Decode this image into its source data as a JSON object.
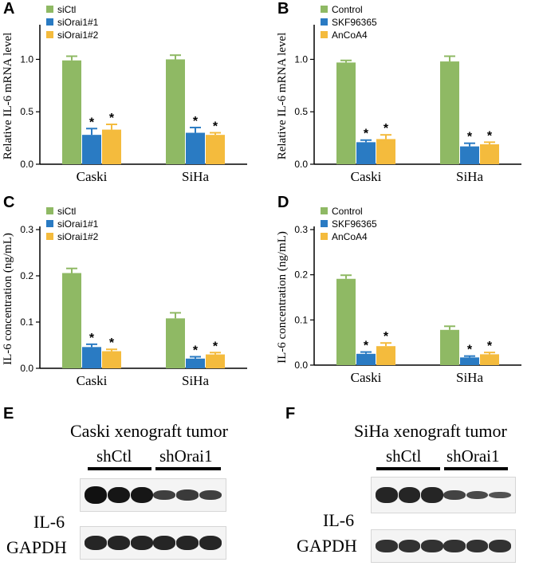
{
  "colors": {
    "green": "#8fb964",
    "blue": "#2a7bc3",
    "yellow": "#f4bb3d"
  },
  "panels": [
    "A",
    "B",
    "C",
    "D",
    "E",
    "F"
  ],
  "chart_data": [
    {
      "id": "A",
      "type": "bar",
      "ylabel": "Relative IL-6 mRNA level",
      "categories": [
        "Caski",
        "SiHa"
      ],
      "ylim": [
        0,
        1.3
      ],
      "yticks": [
        "0.0",
        "0.5",
        "1.0"
      ],
      "series": [
        {
          "name": "siCtl",
          "values": [
            0.99,
            1.0
          ],
          "errors": [
            0.04,
            0.04
          ],
          "sig": [
            "",
            ""
          ]
        },
        {
          "name": "siOrai1#1",
          "values": [
            0.28,
            0.3
          ],
          "errors": [
            0.06,
            0.05
          ],
          "sig": [
            "*",
            "*"
          ]
        },
        {
          "name": "siOrai1#2",
          "values": [
            0.33,
            0.28
          ],
          "errors": [
            0.05,
            0.02
          ],
          "sig": [
            "*",
            "*"
          ]
        }
      ]
    },
    {
      "id": "B",
      "type": "bar",
      "ylabel": "Relative IL-6 mRNA level",
      "categories": [
        "Caski",
        "SiHa"
      ],
      "ylim": [
        0,
        1.3
      ],
      "yticks": [
        "0.0",
        "0.5",
        "1.0"
      ],
      "series": [
        {
          "name": "Control",
          "values": [
            0.97,
            0.98
          ],
          "errors": [
            0.02,
            0.05
          ],
          "sig": [
            "",
            ""
          ]
        },
        {
          "name": "SKF96365",
          "values": [
            0.21,
            0.17
          ],
          "errors": [
            0.02,
            0.03
          ],
          "sig": [
            "*",
            "*"
          ]
        },
        {
          "name": "AnCoA4",
          "values": [
            0.24,
            0.19
          ],
          "errors": [
            0.04,
            0.02
          ],
          "sig": [
            "*",
            "*"
          ]
        }
      ]
    },
    {
      "id": "C",
      "type": "bar",
      "ylabel": "IL-6 concentration (ng/mL)",
      "categories": [
        "Caski",
        "SiHa"
      ],
      "ylim": [
        0,
        0.3
      ],
      "yticks": [
        "0.0",
        "0.1",
        "0.2",
        "0.3"
      ],
      "series": [
        {
          "name": "siCtl",
          "values": [
            0.206,
            0.108
          ],
          "errors": [
            0.01,
            0.012
          ],
          "sig": [
            "",
            ""
          ]
        },
        {
          "name": "siOrai1#1",
          "values": [
            0.046,
            0.021
          ],
          "errors": [
            0.006,
            0.004
          ],
          "sig": [
            "*",
            "*"
          ]
        },
        {
          "name": "siOrai1#2",
          "values": [
            0.037,
            0.03
          ],
          "errors": [
            0.004,
            0.004
          ],
          "sig": [
            "*",
            "*"
          ]
        }
      ]
    },
    {
      "id": "D",
      "type": "bar",
      "ylabel": "IL-6 concentration (ng/mL)",
      "categories": [
        "Caski",
        "SiHa"
      ],
      "ylim": [
        0,
        0.3
      ],
      "yticks": [
        "0.0",
        "0.1",
        "0.2",
        "0.3"
      ],
      "series": [
        {
          "name": "Control",
          "values": [
            0.191,
            0.078
          ],
          "errors": [
            0.008,
            0.008
          ],
          "sig": [
            "",
            ""
          ]
        },
        {
          "name": "SKF96365",
          "values": [
            0.025,
            0.017
          ],
          "errors": [
            0.004,
            0.003
          ],
          "sig": [
            "*",
            "*"
          ]
        },
        {
          "name": "AnCoA4",
          "values": [
            0.042,
            0.024
          ],
          "errors": [
            0.007,
            0.004
          ],
          "sig": [
            "*",
            "*"
          ]
        }
      ]
    }
  ],
  "westerns": [
    {
      "id": "E",
      "title": "Caski xenograft tumor",
      "groups": [
        "shCtl",
        "shOrai1"
      ],
      "rows": [
        {
          "label": "IL-6",
          "intensities": [
            1.0,
            0.95,
            0.95,
            0.55,
            0.6,
            0.55
          ]
        },
        {
          "label": "GAPDH",
          "intensities": [
            0.8,
            0.8,
            0.8,
            0.8,
            0.8,
            0.8
          ]
        }
      ]
    },
    {
      "id": "F",
      "title": "SiHa xenograft tumor",
      "groups": [
        "shCtl",
        "shOrai1"
      ],
      "rows": [
        {
          "label": "IL-6",
          "intensities": [
            0.8,
            0.8,
            0.8,
            0.5,
            0.45,
            0.35
          ]
        },
        {
          "label": "GAPDH",
          "intensities": [
            0.7,
            0.7,
            0.7,
            0.7,
            0.7,
            0.7
          ]
        }
      ]
    }
  ]
}
